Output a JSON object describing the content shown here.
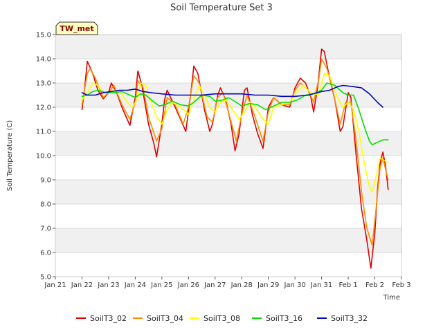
{
  "chart_data": {
    "type": "line",
    "title": "Soil Temperature Set 3",
    "xlabel": "Time",
    "ylabel": "Soil Temperature (C)",
    "badge": "TW_met",
    "ylim": [
      5.0,
      15.0
    ],
    "yticks": [
      "5.0",
      "6.0",
      "7.0",
      "8.0",
      "9.0",
      "10.0",
      "11.0",
      "12.0",
      "13.0",
      "14.0",
      "15.0"
    ],
    "xticks": [
      "Jan 21",
      "Jan 22",
      "Jan 23",
      "Jan 24",
      "Jan 25",
      "Jan 26",
      "Jan 27",
      "Jan 28",
      "Jan 29",
      "Jan 30",
      "Jan 31",
      "Feb 1",
      "Feb 2",
      "Feb 3"
    ],
    "x_unit": "days since Jan 21",
    "xlim": [
      0,
      13
    ],
    "banded_background": true,
    "legend_position": "bottom",
    "series": [
      {
        "name": "SoilT3_02",
        "color": "#e00000",
        "points": [
          [
            1.0,
            11.9
          ],
          [
            1.1,
            12.8
          ],
          [
            1.2,
            13.9
          ],
          [
            1.4,
            13.4
          ],
          [
            1.6,
            12.7
          ],
          [
            1.8,
            12.35
          ],
          [
            2.0,
            12.6
          ],
          [
            2.1,
            13.0
          ],
          [
            2.3,
            12.6
          ],
          [
            2.5,
            12.0
          ],
          [
            2.7,
            11.5
          ],
          [
            2.8,
            11.25
          ],
          [
            3.0,
            12.4
          ],
          [
            3.1,
            13.5
          ],
          [
            3.25,
            12.9
          ],
          [
            3.5,
            11.3
          ],
          [
            3.7,
            10.5
          ],
          [
            3.8,
            9.95
          ],
          [
            4.0,
            11.3
          ],
          [
            4.1,
            12.3
          ],
          [
            4.2,
            12.7
          ],
          [
            4.5,
            12.0
          ],
          [
            4.7,
            11.5
          ],
          [
            4.9,
            11.0
          ],
          [
            5.1,
            12.7
          ],
          [
            5.2,
            13.7
          ],
          [
            5.35,
            13.4
          ],
          [
            5.6,
            11.9
          ],
          [
            5.8,
            11.0
          ],
          [
            5.9,
            11.3
          ],
          [
            6.1,
            12.5
          ],
          [
            6.2,
            12.8
          ],
          [
            6.4,
            12.3
          ],
          [
            6.6,
            11.3
          ],
          [
            6.75,
            10.2
          ],
          [
            6.9,
            10.9
          ],
          [
            7.1,
            12.7
          ],
          [
            7.2,
            12.8
          ],
          [
            7.4,
            11.7
          ],
          [
            7.6,
            10.9
          ],
          [
            7.8,
            10.3
          ],
          [
            8.0,
            12.0
          ],
          [
            8.2,
            12.4
          ],
          [
            8.5,
            12.1
          ],
          [
            8.8,
            12.0
          ],
          [
            9.0,
            12.8
          ],
          [
            9.2,
            13.2
          ],
          [
            9.4,
            13.0
          ],
          [
            9.6,
            12.4
          ],
          [
            9.7,
            11.8
          ],
          [
            9.85,
            12.8
          ],
          [
            10.0,
            14.4
          ],
          [
            10.1,
            14.3
          ],
          [
            10.3,
            13.2
          ],
          [
            10.5,
            12.3
          ],
          [
            10.7,
            11.0
          ],
          [
            10.8,
            11.2
          ],
          [
            11.0,
            12.6
          ],
          [
            11.1,
            12.4
          ],
          [
            11.3,
            10.0
          ],
          [
            11.5,
            7.8
          ],
          [
            11.7,
            6.5
          ],
          [
            11.85,
            5.35
          ],
          [
            12.0,
            6.8
          ],
          [
            12.1,
            8.6
          ],
          [
            12.2,
            9.7
          ],
          [
            12.3,
            10.15
          ],
          [
            12.4,
            9.6
          ],
          [
            12.5,
            8.6
          ]
        ]
      },
      {
        "name": "SoilT3_04",
        "color": "#ff8c00",
        "points": [
          [
            1.0,
            12.1
          ],
          [
            1.2,
            13.4
          ],
          [
            1.3,
            13.6
          ],
          [
            1.5,
            13.2
          ],
          [
            1.8,
            12.4
          ],
          [
            2.0,
            12.6
          ],
          [
            2.2,
            12.9
          ],
          [
            2.5,
            12.1
          ],
          [
            2.8,
            11.5
          ],
          [
            3.0,
            12.2
          ],
          [
            3.1,
            13.1
          ],
          [
            3.3,
            12.8
          ],
          [
            3.5,
            11.6
          ],
          [
            3.8,
            10.6
          ],
          [
            4.0,
            11.1
          ],
          [
            4.2,
            12.4
          ],
          [
            4.5,
            12.1
          ],
          [
            4.8,
            11.3
          ],
          [
            5.0,
            12.0
          ],
          [
            5.2,
            13.3
          ],
          [
            5.4,
            13.0
          ],
          [
            5.7,
            11.6
          ],
          [
            5.9,
            11.4
          ],
          [
            6.1,
            12.4
          ],
          [
            6.3,
            12.6
          ],
          [
            6.5,
            11.8
          ],
          [
            6.8,
            10.6
          ],
          [
            7.0,
            11.7
          ],
          [
            7.2,
            12.5
          ],
          [
            7.5,
            11.6
          ],
          [
            7.8,
            10.6
          ],
          [
            8.0,
            11.8
          ],
          [
            8.2,
            12.4
          ],
          [
            8.5,
            12.1
          ],
          [
            8.8,
            12.1
          ],
          [
            9.0,
            12.7
          ],
          [
            9.2,
            13.0
          ],
          [
            9.5,
            12.7
          ],
          [
            9.7,
            12.2
          ],
          [
            9.9,
            13.2
          ],
          [
            10.0,
            14.0
          ],
          [
            10.2,
            13.6
          ],
          [
            10.4,
            12.8
          ],
          [
            10.7,
            11.3
          ],
          [
            10.9,
            12.2
          ],
          [
            11.1,
            12.2
          ],
          [
            11.3,
            10.6
          ],
          [
            11.5,
            8.5
          ],
          [
            11.7,
            7.0
          ],
          [
            11.9,
            6.3
          ],
          [
            12.0,
            7.3
          ],
          [
            12.2,
            9.5
          ],
          [
            12.3,
            9.9
          ],
          [
            12.5,
            9.0
          ]
        ]
      },
      {
        "name": "SoilT3_08",
        "color": "#ffff00",
        "points": [
          [
            1.0,
            12.3
          ],
          [
            1.2,
            12.6
          ],
          [
            1.4,
            13.0
          ],
          [
            1.6,
            12.9
          ],
          [
            1.8,
            12.6
          ],
          [
            2.0,
            12.6
          ],
          [
            2.2,
            12.7
          ],
          [
            2.4,
            12.7
          ],
          [
            2.7,
            12.2
          ],
          [
            2.9,
            12.0
          ],
          [
            3.1,
            12.4
          ],
          [
            3.2,
            13.0
          ],
          [
            3.4,
            12.9
          ],
          [
            3.6,
            12.2
          ],
          [
            3.8,
            11.6
          ],
          [
            4.0,
            11.3
          ],
          [
            4.2,
            11.9
          ],
          [
            4.4,
            12.2
          ],
          [
            4.7,
            12.0
          ],
          [
            5.0,
            11.7
          ],
          [
            5.2,
            12.3
          ],
          [
            5.4,
            12.9
          ],
          [
            5.6,
            12.5
          ],
          [
            5.8,
            12.0
          ],
          [
            6.0,
            11.8
          ],
          [
            6.2,
            12.2
          ],
          [
            6.4,
            12.3
          ],
          [
            6.6,
            12.0
          ],
          [
            6.9,
            11.5
          ],
          [
            7.1,
            11.8
          ],
          [
            7.3,
            12.2
          ],
          [
            7.5,
            12.0
          ],
          [
            7.8,
            11.5
          ],
          [
            8.0,
            11.3
          ],
          [
            8.2,
            12.0
          ],
          [
            8.5,
            12.1
          ],
          [
            8.8,
            12.2
          ],
          [
            9.0,
            12.5
          ],
          [
            9.3,
            12.9
          ],
          [
            9.6,
            12.6
          ],
          [
            9.9,
            12.5
          ],
          [
            10.1,
            13.4
          ],
          [
            10.3,
            13.3
          ],
          [
            10.6,
            12.4
          ],
          [
            10.8,
            12.0
          ],
          [
            11.0,
            12.2
          ],
          [
            11.2,
            11.9
          ],
          [
            11.4,
            11.0
          ],
          [
            11.6,
            9.7
          ],
          [
            11.8,
            8.7
          ],
          [
            11.9,
            8.5
          ],
          [
            12.0,
            8.9
          ],
          [
            12.2,
            9.9
          ],
          [
            12.5,
            9.7
          ]
        ]
      },
      {
        "name": "SoilT3_16",
        "color": "#00e000",
        "points": [
          [
            1.0,
            12.45
          ],
          [
            1.2,
            12.5
          ],
          [
            1.4,
            12.65
          ],
          [
            1.6,
            12.7
          ],
          [
            1.9,
            12.6
          ],
          [
            2.2,
            12.6
          ],
          [
            2.5,
            12.65
          ],
          [
            2.8,
            12.5
          ],
          [
            3.0,
            12.4
          ],
          [
            3.2,
            12.55
          ],
          [
            3.4,
            12.5
          ],
          [
            3.6,
            12.3
          ],
          [
            3.9,
            12.05
          ],
          [
            4.1,
            12.1
          ],
          [
            4.4,
            12.25
          ],
          [
            4.7,
            12.1
          ],
          [
            5.0,
            12.05
          ],
          [
            5.2,
            12.2
          ],
          [
            5.5,
            12.5
          ],
          [
            5.8,
            12.45
          ],
          [
            6.0,
            12.25
          ],
          [
            6.3,
            12.3
          ],
          [
            6.5,
            12.4
          ],
          [
            6.8,
            12.2
          ],
          [
            7.0,
            12.05
          ],
          [
            7.3,
            12.15
          ],
          [
            7.6,
            12.1
          ],
          [
            7.9,
            11.9
          ],
          [
            8.2,
            12.05
          ],
          [
            8.5,
            12.2
          ],
          [
            8.8,
            12.2
          ],
          [
            9.1,
            12.3
          ],
          [
            9.4,
            12.5
          ],
          [
            9.7,
            12.55
          ],
          [
            10.0,
            12.7
          ],
          [
            10.2,
            13.0
          ],
          [
            10.5,
            12.9
          ],
          [
            10.8,
            12.6
          ],
          [
            11.0,
            12.5
          ],
          [
            11.2,
            12.5
          ],
          [
            11.4,
            11.9
          ],
          [
            11.6,
            11.2
          ],
          [
            11.8,
            10.6
          ],
          [
            11.9,
            10.45
          ],
          [
            12.1,
            10.55
          ],
          [
            12.3,
            10.65
          ],
          [
            12.5,
            10.65
          ]
        ]
      },
      {
        "name": "SoilT3_32",
        "color": "#0000cc",
        "points": [
          [
            1.0,
            12.6
          ],
          [
            1.2,
            12.5
          ],
          [
            1.5,
            12.5
          ],
          [
            1.8,
            12.6
          ],
          [
            2.1,
            12.65
          ],
          [
            2.4,
            12.7
          ],
          [
            2.7,
            12.7
          ],
          [
            3.0,
            12.75
          ],
          [
            3.3,
            12.65
          ],
          [
            3.6,
            12.6
          ],
          [
            4.0,
            12.55
          ],
          [
            4.5,
            12.5
          ],
          [
            5.0,
            12.5
          ],
          [
            5.5,
            12.5
          ],
          [
            6.0,
            12.55
          ],
          [
            6.5,
            12.55
          ],
          [
            7.0,
            12.55
          ],
          [
            7.5,
            12.5
          ],
          [
            8.0,
            12.5
          ],
          [
            8.5,
            12.45
          ],
          [
            9.0,
            12.45
          ],
          [
            9.5,
            12.5
          ],
          [
            10.0,
            12.65
          ],
          [
            10.3,
            12.7
          ],
          [
            10.6,
            12.85
          ],
          [
            10.8,
            12.9
          ],
          [
            11.2,
            12.85
          ],
          [
            11.5,
            12.8
          ],
          [
            11.8,
            12.55
          ],
          [
            12.1,
            12.2
          ],
          [
            12.3,
            12.0
          ]
        ]
      }
    ]
  }
}
